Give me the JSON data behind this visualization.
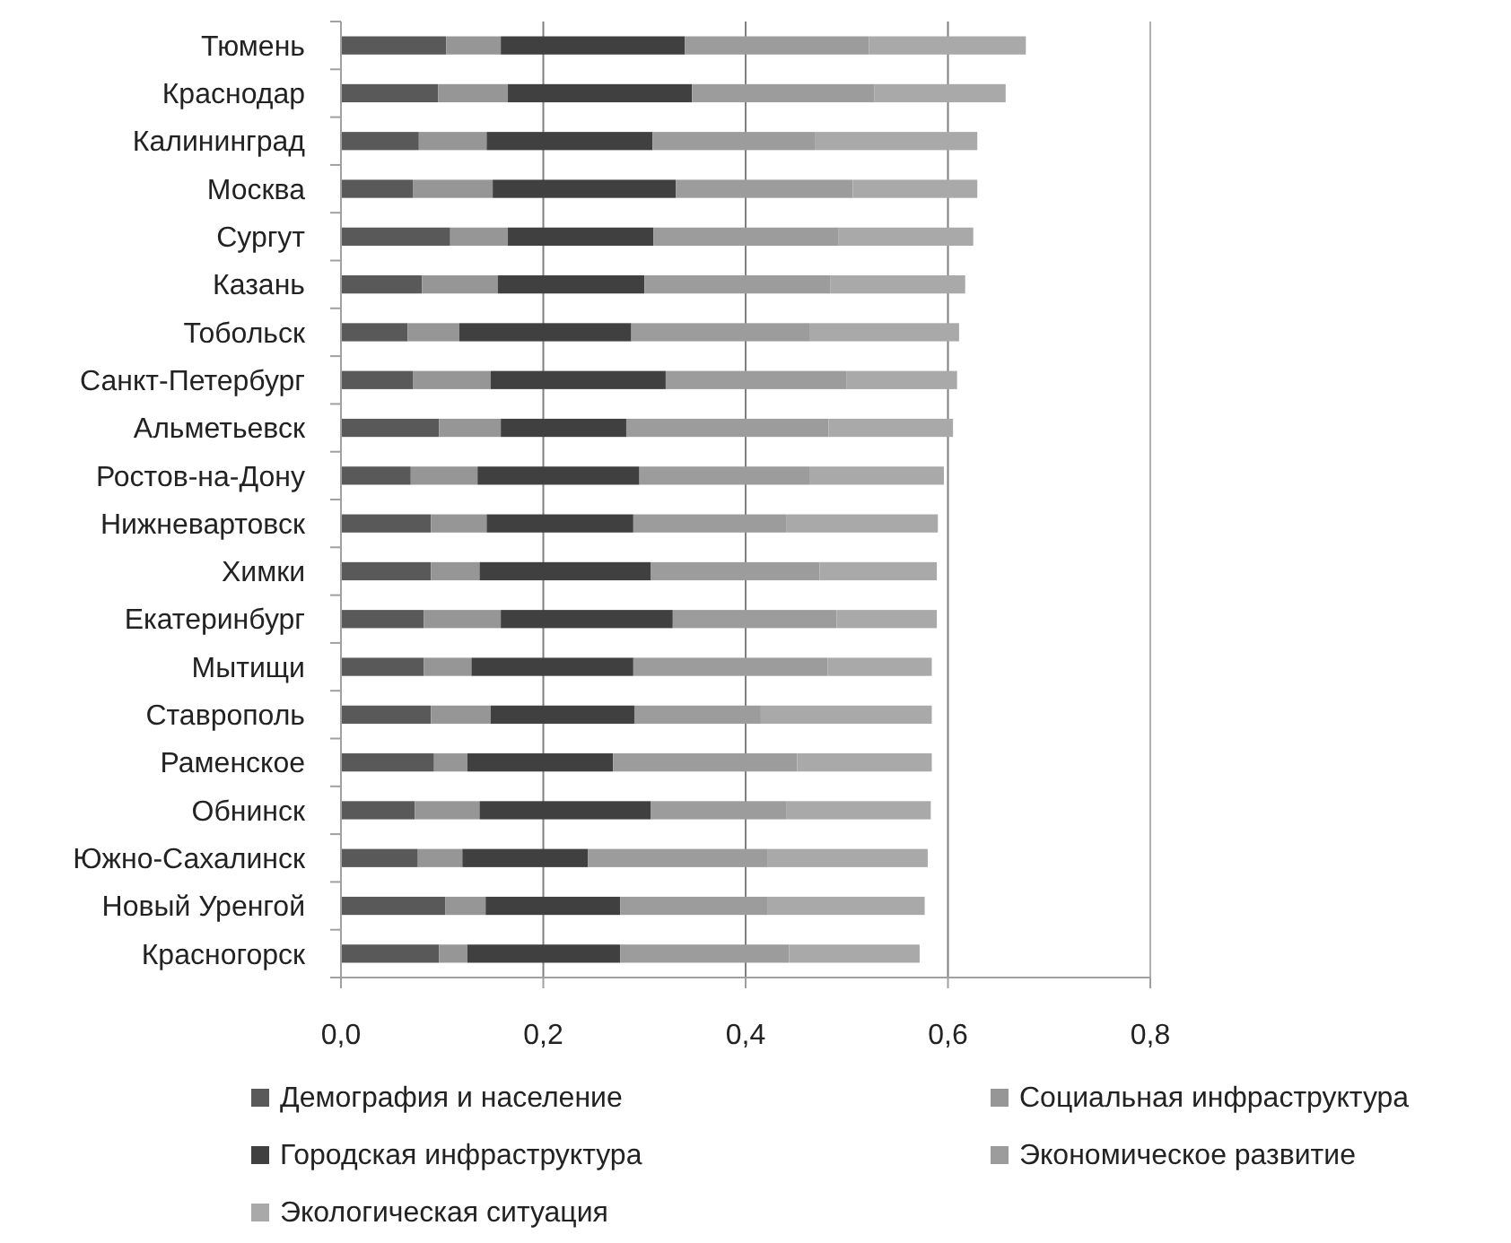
{
  "chart_data": {
    "type": "bar",
    "orientation": "horizontal",
    "stacked": true,
    "categories": [
      "Тюмень",
      "Краснодар",
      "Калининград",
      "Москва",
      "Сургут",
      "Казань",
      "Тобольск",
      "Санкт-Петербург",
      "Альметьевск",
      "Ростов-на-Дону",
      "Нижневартовск",
      "Химки",
      "Екатеринбург",
      "Мытищи",
      "Ставрополь",
      "Раменское",
      "Обнинск",
      "Южно-Сахалинск",
      "Новый Уренгой",
      "Красногорск"
    ],
    "series": [
      {
        "name": "Демография и население",
        "color": "#595959",
        "values": [
          0.104,
          0.096,
          0.077,
          0.071,
          0.108,
          0.08,
          0.066,
          0.071,
          0.097,
          0.069,
          0.089,
          0.089,
          0.082,
          0.082,
          0.089,
          0.092,
          0.073,
          0.076,
          0.103,
          0.097
        ]
      },
      {
        "name": "Социальная инфраструктура",
        "color": "#969696",
        "values": [
          0.054,
          0.069,
          0.067,
          0.079,
          0.057,
          0.075,
          0.051,
          0.077,
          0.061,
          0.066,
          0.055,
          0.048,
          0.076,
          0.047,
          0.059,
          0.033,
          0.064,
          0.044,
          0.04,
          0.028
        ]
      },
      {
        "name": "Городская инфраструктура",
        "color": "#404040",
        "values": [
          0.182,
          0.182,
          0.164,
          0.181,
          0.144,
          0.145,
          0.17,
          0.173,
          0.124,
          0.16,
          0.145,
          0.169,
          0.17,
          0.16,
          0.142,
          0.144,
          0.169,
          0.124,
          0.133,
          0.151
        ]
      },
      {
        "name": "Экономическое развитие",
        "color": "#9c9c9c",
        "values": [
          0.182,
          0.18,
          0.161,
          0.175,
          0.183,
          0.184,
          0.176,
          0.179,
          0.2,
          0.168,
          0.151,
          0.167,
          0.162,
          0.192,
          0.125,
          0.182,
          0.134,
          0.178,
          0.146,
          0.167
        ]
      },
      {
        "name": "Экологическая ситуация",
        "color": "#a9a9a9",
        "values": [
          0.155,
          0.13,
          0.16,
          0.123,
          0.133,
          0.133,
          0.148,
          0.109,
          0.123,
          0.133,
          0.15,
          0.116,
          0.099,
          0.103,
          0.169,
          0.133,
          0.143,
          0.158,
          0.155,
          0.129
        ]
      }
    ],
    "xlim": [
      0,
      0.8
    ],
    "xticks": [
      {
        "value": 0,
        "label": "0,0"
      },
      {
        "value": 0.2,
        "label": "0,2"
      },
      {
        "value": 0.4,
        "label": "0,4"
      },
      {
        "value": 0.6,
        "label": "0,6"
      },
      {
        "value": 0.8,
        "label": "0,8"
      }
    ],
    "grid": "x",
    "legend": "bottom"
  }
}
